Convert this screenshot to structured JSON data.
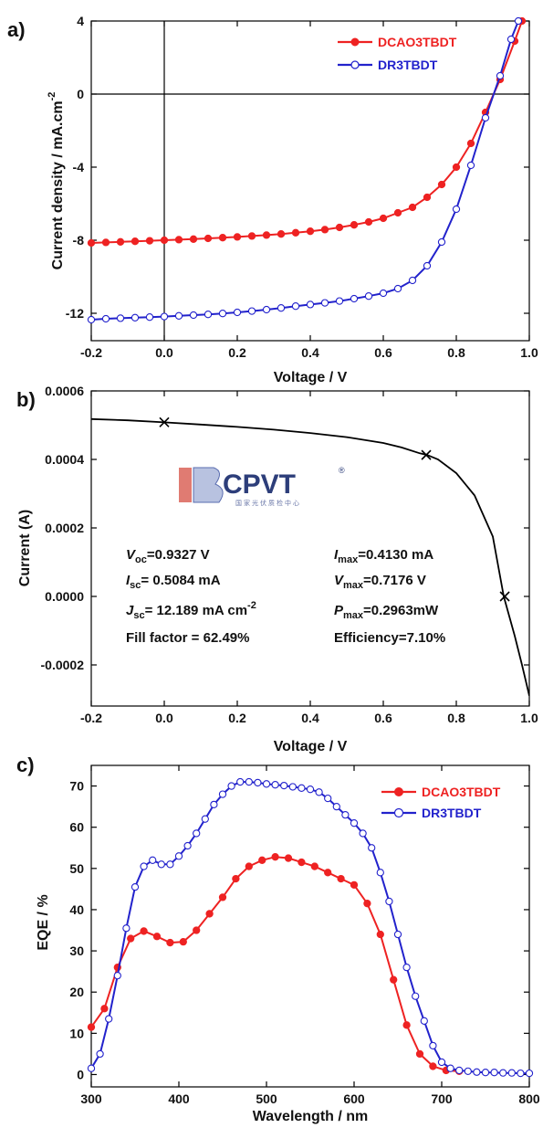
{
  "chart_data": [
    {
      "panel_label": "a)",
      "type": "line",
      "xlabel": "Voltage / V",
      "ylabel": "Current density / mA.cm",
      "ylabel_sup": "-2",
      "xlim": [
        -0.2,
        1.0
      ],
      "ylim": [
        -13.5,
        4
      ],
      "xticks": [
        -0.2,
        0.0,
        0.2,
        0.4,
        0.6,
        0.8,
        1.0
      ],
      "xtick_labels": [
        "-0.2",
        "0.0",
        "0.2",
        "0.4",
        "0.6",
        "0.8",
        "1.0"
      ],
      "yticks": [
        4,
        0,
        -4,
        -8,
        -12
      ],
      "ytick_labels": [
        "4",
        "0",
        "-4",
        "-8",
        "-12"
      ],
      "reference_lines": {
        "x": 0,
        "y": 0
      },
      "legend_position": "top-right",
      "series": [
        {
          "name": "DCAO3TBDT",
          "color": "#ee2222",
          "marker": "filled-circle",
          "x": [
            -0.2,
            -0.16,
            -0.12,
            -0.08,
            -0.04,
            0.0,
            0.04,
            0.08,
            0.12,
            0.16,
            0.2,
            0.24,
            0.28,
            0.32,
            0.36,
            0.4,
            0.44,
            0.48,
            0.52,
            0.56,
            0.6,
            0.64,
            0.68,
            0.72,
            0.76,
            0.8,
            0.84,
            0.88,
            0.92,
            0.96,
            0.98
          ],
          "y": [
            -8.15,
            -8.12,
            -8.09,
            -8.06,
            -8.03,
            -8.0,
            -7.97,
            -7.94,
            -7.9,
            -7.86,
            -7.82,
            -7.77,
            -7.72,
            -7.66,
            -7.59,
            -7.51,
            -7.42,
            -7.3,
            -7.16,
            -7.0,
            -6.8,
            -6.5,
            -6.2,
            -5.65,
            -4.95,
            -4.0,
            -2.7,
            -1.0,
            0.8,
            2.9,
            4.0
          ]
        },
        {
          "name": "DR3TBDT",
          "color": "#2222cc",
          "marker": "open-circle",
          "x": [
            -0.2,
            -0.16,
            -0.12,
            -0.08,
            -0.04,
            0.0,
            0.04,
            0.08,
            0.12,
            0.16,
            0.2,
            0.24,
            0.28,
            0.32,
            0.36,
            0.4,
            0.44,
            0.48,
            0.52,
            0.56,
            0.6,
            0.64,
            0.68,
            0.72,
            0.76,
            0.8,
            0.84,
            0.88,
            0.92,
            0.95,
            0.97
          ],
          "y": [
            -12.35,
            -12.3,
            -12.27,
            -12.24,
            -12.21,
            -12.18,
            -12.14,
            -12.1,
            -12.06,
            -12.01,
            -11.95,
            -11.88,
            -11.8,
            -11.71,
            -11.61,
            -11.52,
            -11.43,
            -11.33,
            -11.2,
            -11.06,
            -10.9,
            -10.65,
            -10.2,
            -9.4,
            -8.1,
            -6.3,
            -3.9,
            -1.3,
            1.0,
            3.0,
            4.0
          ]
        }
      ]
    },
    {
      "panel_label": "b)",
      "type": "line",
      "xlabel": "Voltage / V",
      "ylabel": "Current (A)",
      "xlim": [
        -0.2,
        1.0
      ],
      "ylim": [
        -0.00032,
        0.0006
      ],
      "xticks": [
        -0.2,
        0.0,
        0.2,
        0.4,
        0.6,
        0.8,
        1.0
      ],
      "xtick_labels": [
        "-0.2",
        "0.0",
        "0.2",
        "0.4",
        "0.6",
        "0.8",
        "1.0"
      ],
      "yticks": [
        0.0006,
        0.0004,
        0.0002,
        0.0,
        -0.0002
      ],
      "ytick_labels": [
        "0.0006",
        "0.0004",
        "0.0002",
        "0.0000",
        "-0.0002"
      ],
      "series": [
        {
          "color": "#000000",
          "x": [
            -0.2,
            -0.1,
            0.0,
            0.1,
            0.2,
            0.3,
            0.4,
            0.5,
            0.6,
            0.65,
            0.7,
            0.72,
            0.75,
            0.8,
            0.85,
            0.9,
            0.93,
            0.96,
            0.98,
            1.0
          ],
          "y": [
            0.000518,
            0.000514,
            0.0005084,
            0.000502,
            0.000495,
            0.000487,
            0.000477,
            0.000465,
            0.000448,
            0.000435,
            0.000418,
            0.000413,
            0.0004,
            0.00036,
            0.000295,
            0.000175,
            0.0,
            -0.000115,
            -0.0002,
            -0.00029
          ]
        }
      ],
      "markers": {
        "shape": "x",
        "x": [
          0.0,
          0.7176,
          0.9327
        ],
        "y": [
          0.0005084,
          0.000413,
          0.0
        ]
      },
      "annotations": {
        "voc_symbol": "V",
        "voc_sub": "oc",
        "voc_value": "=0.9327 V",
        "isc_symbol": "I",
        "isc_sub": "sc",
        "isc_value": "= 0.5084 mA",
        "jsc_symbol": "J",
        "jsc_sub": "sc",
        "jsc_value": "= 12.189 mA cm",
        "jsc_sup": "-2",
        "fill_factor": "Fill factor = 62.49%",
        "imax_symbol": "I",
        "imax_sub": "max",
        "imax_value": "=0.4130 mA",
        "vmax_symbol": "V",
        "vmax_sub": "max",
        "vmax_value": "=0.7176 V",
        "pmax_symbol": "P",
        "pmax_sub": "max",
        "pmax_value": "=0.2963mW",
        "efficiency": "Efficiency=7.10%"
      },
      "watermark": {
        "logo_text": "CPVT",
        "registered": "®",
        "chinese": "国家光伏质检中心",
        "colors": {
          "logo_red": "#d9534f",
          "logo_blue": "#4a5fa0",
          "text": "#2d3e7a"
        }
      }
    },
    {
      "panel_label": "c)",
      "type": "line",
      "xlabel": "Wavelength / nm",
      "ylabel": "EQE / %",
      "xlim": [
        300,
        800
      ],
      "ylim": [
        -3,
        75
      ],
      "xticks": [
        300,
        400,
        500,
        600,
        700,
        800
      ],
      "xtick_labels": [
        "300",
        "400",
        "500",
        "600",
        "700",
        "800"
      ],
      "yticks": [
        0,
        10,
        20,
        30,
        40,
        50,
        60,
        70
      ],
      "ytick_labels": [
        "0",
        "10",
        "20",
        "30",
        "40",
        "50",
        "60",
        "70"
      ],
      "legend_position": "top-right",
      "series": [
        {
          "name": "DCAO3TBDT",
          "color": "#ee2222",
          "marker": "filled-circle",
          "x": [
            300,
            315,
            330,
            345,
            360,
            375,
            390,
            405,
            420,
            435,
            450,
            465,
            480,
            495,
            510,
            525,
            540,
            555,
            570,
            585,
            600,
            615,
            630,
            645,
            660,
            675,
            690,
            705,
            720
          ],
          "y": [
            11.5,
            16,
            26,
            33,
            34.8,
            33.5,
            32,
            32.2,
            35,
            39,
            43,
            47.5,
            50.5,
            52,
            52.8,
            52.5,
            51.5,
            50.5,
            49,
            47.5,
            46,
            41.5,
            34,
            23,
            12,
            5,
            2,
            1,
            0.8
          ]
        },
        {
          "name": "DR3TBDT",
          "color": "#2222cc",
          "marker": "open-circle",
          "x": [
            300,
            310,
            320,
            330,
            340,
            350,
            360,
            370,
            380,
            390,
            400,
            410,
            420,
            430,
            440,
            450,
            460,
            470,
            480,
            490,
            500,
            510,
            520,
            530,
            540,
            550,
            560,
            570,
            580,
            590,
            600,
            610,
            620,
            630,
            640,
            650,
            660,
            670,
            680,
            690,
            700,
            710,
            720,
            730,
            740,
            750,
            760,
            770,
            780,
            790,
            800
          ],
          "y": [
            1.5,
            5,
            13.5,
            24,
            35.5,
            45.5,
            50.5,
            52,
            51,
            51,
            53,
            55.5,
            58.5,
            62,
            65.5,
            68,
            70,
            71,
            71,
            70.8,
            70.5,
            70.3,
            70.1,
            69.8,
            69.5,
            69.2,
            68.5,
            67,
            65,
            63,
            61,
            58.5,
            55,
            49,
            42,
            34,
            26,
            19,
            13,
            7,
            3,
            1.5,
            1,
            0.8,
            0.6,
            0.5,
            0.5,
            0.4,
            0.4,
            0.3,
            0.3
          ]
        }
      ]
    }
  ]
}
